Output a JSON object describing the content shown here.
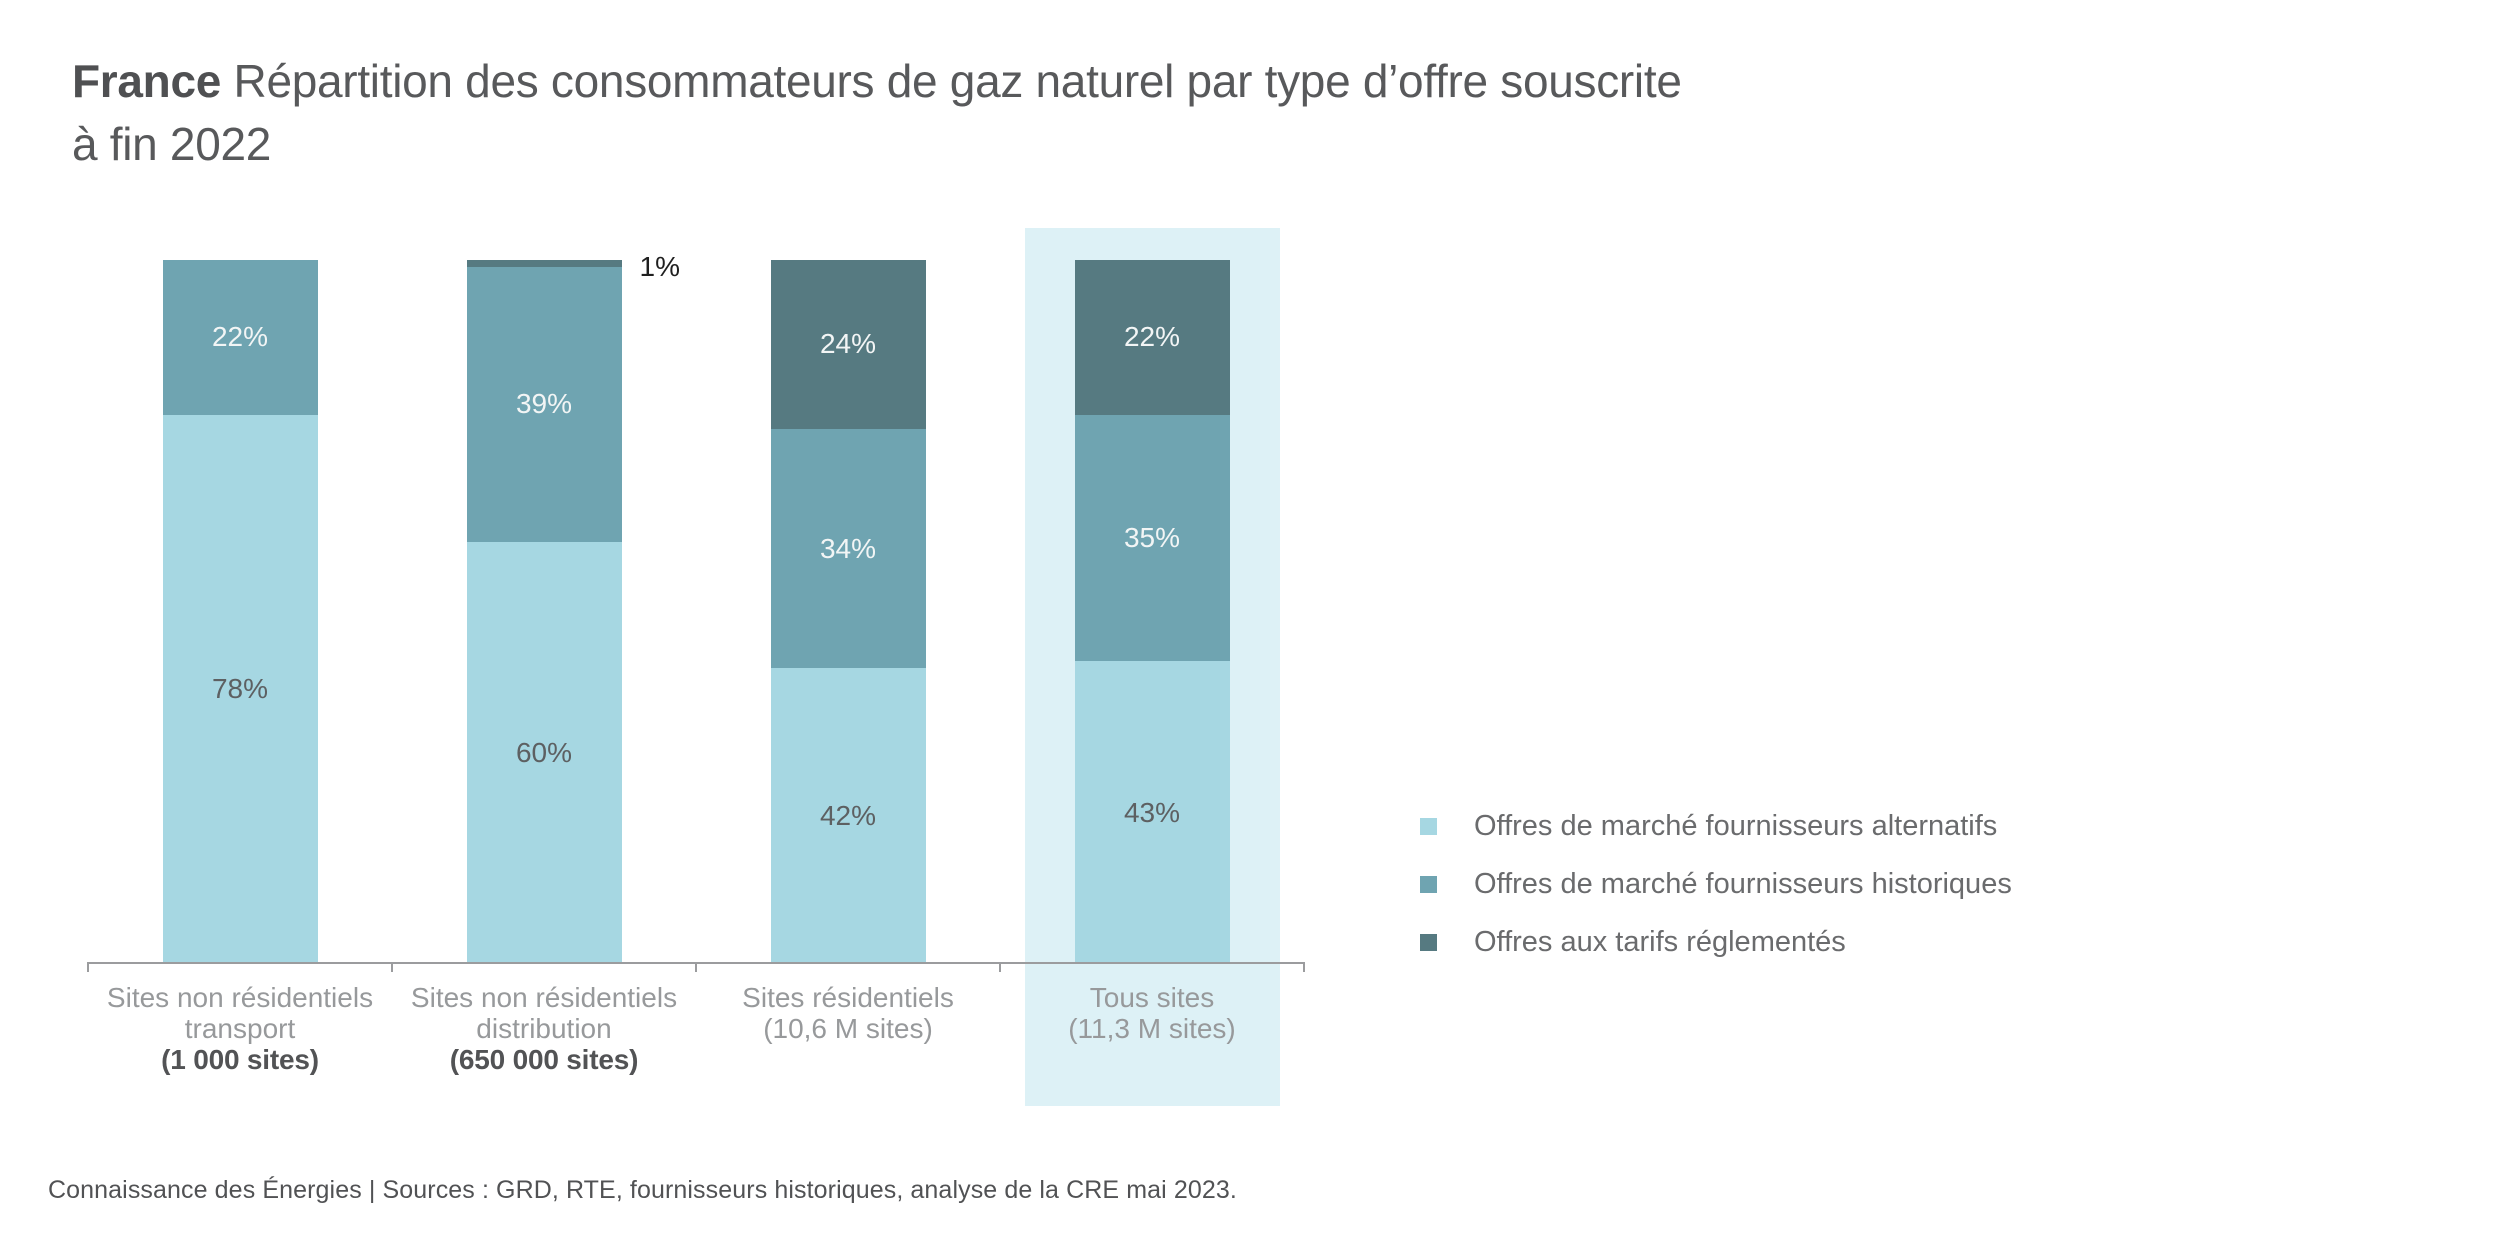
{
  "header": {
    "title_bold": "France",
    "title_rest": " Répartition des consommateurs de gaz naturel par type d’offre souscrite",
    "title_line2": "à fin 2022"
  },
  "chart_data": {
    "type": "bar",
    "stacked": true,
    "title": "France Répartition des consommateurs de gaz naturel par type d’offre souscrite à fin 2022",
    "unit": "%",
    "ylim": [
      0,
      100
    ],
    "grid": false,
    "legend_position": "right",
    "categories": [
      {
        "lines": [
          "Sites non résidentiels",
          "transport",
          "(1 000 sites)"
        ],
        "emphasized_last_line": true
      },
      {
        "lines": [
          "Sites non résidentiels",
          "distribution",
          "(650 000 sites)"
        ],
        "emphasized_last_line": true
      },
      {
        "lines": [
          "Sites résidentiels",
          "(10,6 M sites)"
        ],
        "emphasized_last_line": false
      },
      {
        "lines": [
          "Tous sites",
          "(11,3 M sites)"
        ],
        "emphasized_last_line": false
      }
    ],
    "series": [
      {
        "name": "Offres de marché fournisseurs alternatifs",
        "color": "#a6d7e2",
        "label_color": "#5d6062",
        "values": [
          78,
          60,
          42,
          43
        ]
      },
      {
        "name": "Offres de marché fournisseurs historiques",
        "color": "#6fa4b1",
        "label_color": "#f2f5f5",
        "values": [
          22,
          39,
          34,
          35
        ]
      },
      {
        "name": "Offres aux tarifs réglementés",
        "color": "#567a81",
        "label_color": "#f2f5f5",
        "values": [
          0,
          1,
          24,
          22
        ]
      }
    ],
    "highlighted_category_index": 3,
    "highlight_color": "#ddf1f6",
    "value_suffix": "%"
  },
  "footer": {
    "source_line": "Connaissance des Énergies | Sources : GRD, RTE, fournisseurs historiques, analyse de la CRE mai 2023."
  }
}
